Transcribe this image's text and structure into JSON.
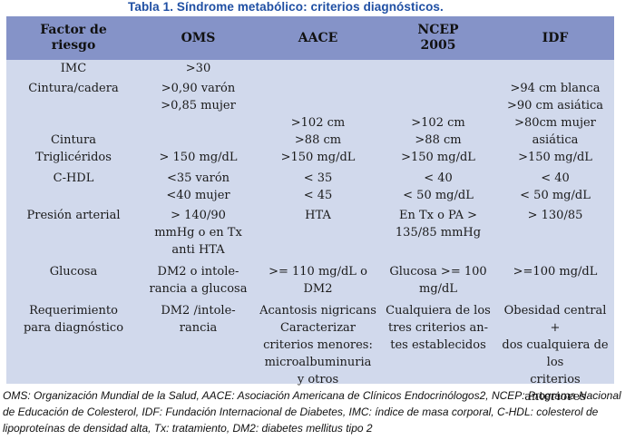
{
  "title": "Tabla 1. Síndrome  metabólico: criterios diagnósticos.",
  "table": {
    "headers": [
      "Factor de\nriesgo",
      "OMS",
      "AACE",
      "NCEP\n2005",
      "IDF"
    ],
    "rows": [
      [
        "IMC",
        ">30",
        "",
        "",
        ""
      ],
      [
        "Cintura/cadera",
        ">0,90 varón\n>0,85 mujer",
        "",
        "",
        ">94 cm blanca\n>90 cm asiática"
      ],
      [
        "Cintura",
        "",
        ">102 cm\n>88 cm",
        ">102 cm\n>88 cm",
        ">80cm mujer asiática"
      ],
      [
        "Triglicéridos",
        "> 150 mg/dL",
        ">150 mg/dL",
        ">150 mg/dL",
        ">150 mg/dL"
      ],
      [
        "C-HDL",
        "<35 varón\n<40 mujer",
        "< 35\n< 45",
        "< 40\n< 50 mg/dL",
        "< 40\n< 50 mg/dL"
      ],
      [
        "Presión arterial",
        "> 140/90\nmmHg o en Tx\nanti HTA",
        "HTA",
        "En Tx o PA >\n135/85 mmHg",
        "> 130/85"
      ],
      [
        "Glucosa",
        "DM2 o intole-\nrancia a glucosa",
        ">= 110 mg/dL o\nDM2",
        "Glucosa >= 100\nmg/dL",
        ">=100 mg/dL"
      ],
      [
        "Requerimiento\npara diagnóstico",
        "DM2 /intole-\nrancia",
        "Acantosis nigricans\nCaracterizar\ncriterios menores:\nmicroalbuminuria\ny otros",
        "Cualquiera de los\ntres criterios  an-\ntes establecidos",
        "Obesidad central +\ndos cualquiera de los\ncriterios anteriores"
      ]
    ]
  },
  "footnote": "OMS: Organización Mundial de la Salud, AACE: Asociación Americana de Clínicos Endocrinólogos2, NCEP: Programa Nacional  de Educación de Colesterol, IDF: Fundación Internacional de Diabetes, IMC: índice de masa corporal, C-HDL: colesterol de lipoproteínas de densidad alta, Tx: tratamiento,  DM2: diabetes mellitus tipo 2"
}
